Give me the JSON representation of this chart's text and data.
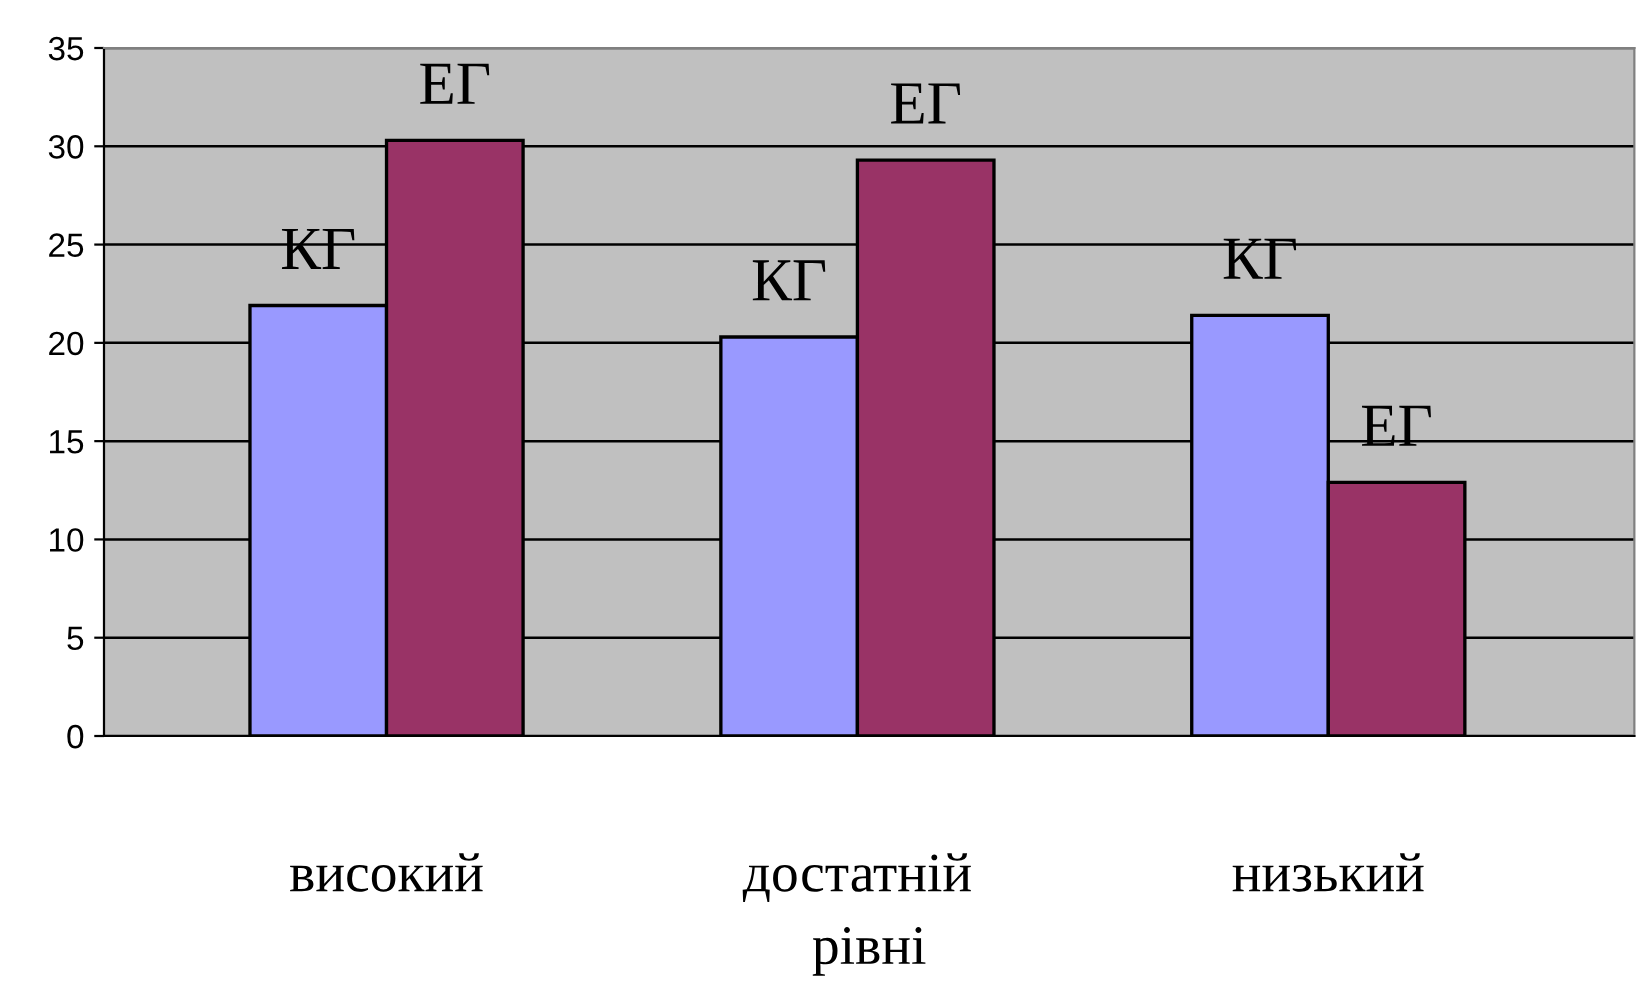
{
  "chart_data": {
    "type": "bar",
    "categories": [
      "високий",
      "достатній",
      "низький"
    ],
    "xlabel": "рівні",
    "series": [
      {
        "name": "КГ",
        "color": "#9999ff",
        "values": [
          21.9,
          20.3,
          21.4
        ]
      },
      {
        "name": "ЕГ",
        "color": "#993366",
        "values": [
          30.3,
          29.3,
          12.9
        ]
      }
    ],
    "ylim": [
      0,
      35
    ],
    "yticks": [
      0,
      5,
      10,
      15,
      20,
      25,
      30,
      35
    ],
    "grid": "y",
    "legend": false
  }
}
